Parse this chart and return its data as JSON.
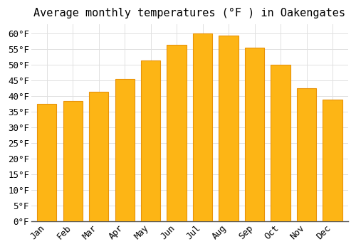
{
  "title": "Average monthly temperatures (°F ) in Oakengates",
  "months": [
    "Jan",
    "Feb",
    "Mar",
    "Apr",
    "May",
    "Jun",
    "Jul",
    "Aug",
    "Sep",
    "Oct",
    "Nov",
    "Dec"
  ],
  "values": [
    37.5,
    38.5,
    41.5,
    45.5,
    51.5,
    56.5,
    60.0,
    59.5,
    55.5,
    50.0,
    42.5,
    39.0
  ],
  "bar_color": "#FDB515",
  "bar_edge_color": "#E8920A",
  "background_color": "#FFFFFF",
  "plot_bg_color": "#FFFFFF",
  "grid_color": "#E0E0E0",
  "ylim": [
    0,
    63
  ],
  "yticks": [
    0,
    5,
    10,
    15,
    20,
    25,
    30,
    35,
    40,
    45,
    50,
    55,
    60
  ],
  "title_fontsize": 11,
  "tick_fontsize": 9,
  "font_family": "monospace",
  "bar_width": 0.75
}
